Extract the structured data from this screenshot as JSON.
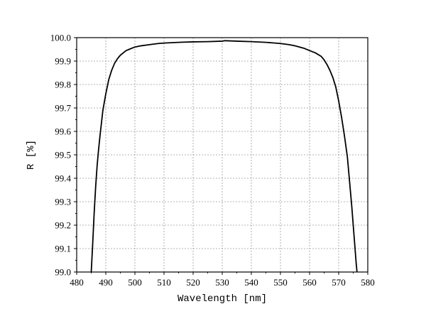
{
  "chart_data": {
    "type": "line",
    "xlabel": "Wavelength [nm]",
    "ylabel": "R [%]",
    "xlim": [
      480,
      580
    ],
    "ylim": [
      99.0,
      100.0
    ],
    "x_ticks": [
      "480",
      "490",
      "500",
      "510",
      "520",
      "530",
      "540",
      "550",
      "560",
      "570",
      "580"
    ],
    "y_ticks": [
      "99.0",
      "99.1",
      "99.2",
      "99.3",
      "99.4",
      "99.5",
      "99.6",
      "99.7",
      "99.8",
      "99.9",
      "100.0"
    ],
    "grid": true,
    "legend": "none",
    "series": [
      {
        "color": "#000000",
        "x": [
          485.0,
          485.5,
          486.0,
          486.5,
          487.0,
          487.5,
          488.0,
          489.0,
          490.0,
          491.0,
          492.0,
          493.0,
          494.0,
          495.0,
          496.0,
          497.0,
          498.0,
          499.0,
          500.0,
          502.0,
          505.0,
          508.0,
          510.0,
          515.0,
          520.0,
          525.0,
          530.0,
          531.0,
          535.0,
          540.0,
          545.0,
          550.0,
          553.0,
          555.0,
          558.0,
          560.0,
          562.0,
          564.0,
          565.0,
          566.0,
          567.0,
          568.0,
          569.0,
          570.0,
          571.0,
          572.0,
          573.0,
          574.0,
          574.5,
          575.0,
          575.5,
          576.0,
          576.3
        ],
        "y": [
          99.0,
          99.12,
          99.25,
          99.36,
          99.45,
          99.52,
          99.58,
          99.69,
          99.76,
          99.82,
          99.86,
          99.89,
          99.91,
          99.925,
          99.935,
          99.945,
          99.95,
          99.955,
          99.96,
          99.965,
          99.97,
          99.975,
          99.977,
          99.98,
          99.982,
          99.983,
          99.985,
          99.987,
          99.985,
          99.983,
          99.98,
          99.975,
          99.97,
          99.965,
          99.955,
          99.945,
          99.935,
          99.92,
          99.905,
          99.885,
          99.86,
          99.83,
          99.79,
          99.73,
          99.66,
          99.58,
          99.49,
          99.35,
          99.28,
          99.2,
          99.12,
          99.04,
          99.0
        ]
      }
    ]
  }
}
